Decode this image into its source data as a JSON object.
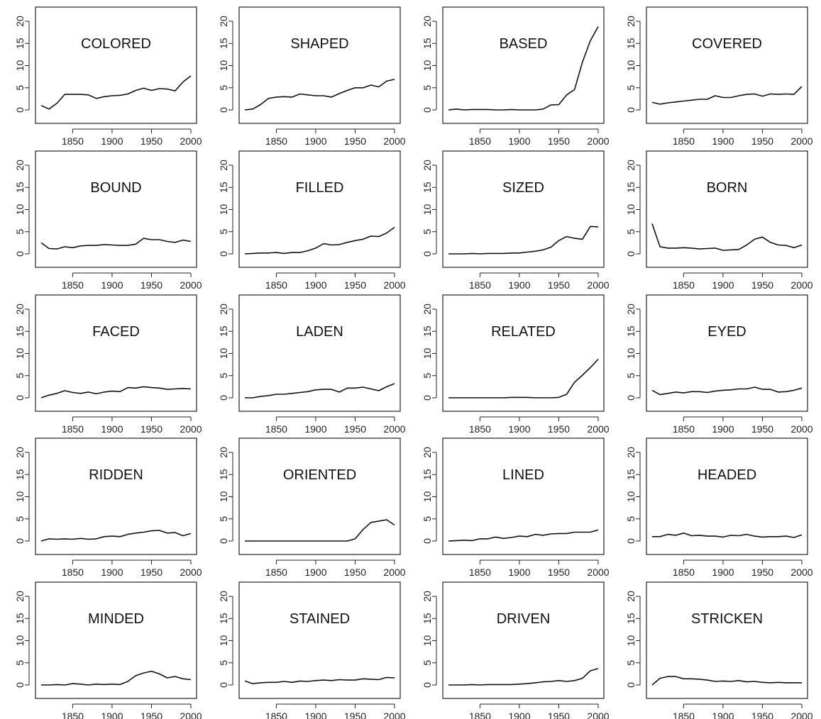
{
  "chart_data": [
    {
      "type": "line",
      "title": "COLORED",
      "xlim": [
        1800,
        2000
      ],
      "ylim": [
        0,
        20
      ],
      "x": [
        1810,
        1820,
        1830,
        1840,
        1850,
        1860,
        1870,
        1880,
        1890,
        1900,
        1910,
        1920,
        1930,
        1940,
        1950,
        1960,
        1970,
        1980,
        1990,
        2000
      ],
      "y": [
        1.0,
        0.2,
        1.5,
        3.5,
        3.5,
        3.5,
        3.4,
        2.6,
        3.0,
        3.2,
        3.3,
        3.6,
        4.4,
        4.9,
        4.4,
        4.8,
        4.7,
        4.3,
        6.3,
        7.7
      ]
    },
    {
      "type": "line",
      "title": "SHAPED",
      "xlim": [
        1800,
        2000
      ],
      "ylim": [
        0,
        20
      ],
      "x": [
        1810,
        1820,
        1830,
        1840,
        1850,
        1860,
        1870,
        1880,
        1890,
        1900,
        1910,
        1920,
        1930,
        1940,
        1950,
        1960,
        1970,
        1980,
        1990,
        2000
      ],
      "y": [
        0.0,
        0.2,
        1.2,
        2.6,
        2.9,
        3.0,
        2.9,
        3.6,
        3.4,
        3.2,
        3.2,
        2.9,
        3.7,
        4.4,
        5.0,
        5.0,
        5.6,
        5.2,
        6.5,
        6.9
      ]
    },
    {
      "type": "line",
      "title": "BASED",
      "xlim": [
        1800,
        2000
      ],
      "ylim": [
        0,
        20
      ],
      "x": [
        1810,
        1820,
        1830,
        1840,
        1850,
        1860,
        1870,
        1880,
        1890,
        1900,
        1910,
        1920,
        1930,
        1940,
        1950,
        1960,
        1970,
        1980,
        1990,
        2000
      ],
      "y": [
        0.0,
        0.2,
        0.0,
        0.1,
        0.1,
        0.1,
        0.0,
        0.0,
        0.1,
        0.0,
        0.0,
        0.0,
        0.2,
        1.1,
        1.2,
        3.4,
        4.6,
        10.8,
        15.6,
        18.8
      ]
    },
    {
      "type": "line",
      "title": "COVERED",
      "xlim": [
        1800,
        2000
      ],
      "ylim": [
        0,
        20
      ],
      "x": [
        1810,
        1820,
        1830,
        1840,
        1850,
        1860,
        1870,
        1880,
        1890,
        1900,
        1910,
        1920,
        1930,
        1940,
        1950,
        1960,
        1970,
        1980,
        1990,
        2000
      ],
      "y": [
        1.7,
        1.3,
        1.6,
        1.8,
        2.0,
        2.2,
        2.4,
        2.4,
        3.2,
        2.8,
        2.8,
        3.2,
        3.5,
        3.6,
        3.1,
        3.6,
        3.5,
        3.6,
        3.5,
        5.3
      ]
    },
    {
      "type": "line",
      "title": "BOUND",
      "xlim": [
        1800,
        2000
      ],
      "ylim": [
        0,
        20
      ],
      "x": [
        1810,
        1820,
        1830,
        1840,
        1850,
        1860,
        1870,
        1880,
        1890,
        1900,
        1910,
        1920,
        1930,
        1940,
        1950,
        1960,
        1970,
        1980,
        1990,
        2000
      ],
      "y": [
        2.5,
        1.2,
        1.1,
        1.6,
        1.4,
        1.8,
        1.9,
        1.9,
        2.1,
        2.0,
        1.9,
        1.9,
        2.2,
        3.5,
        3.2,
        3.2,
        2.8,
        2.6,
        3.1,
        2.8
      ]
    },
    {
      "type": "line",
      "title": "FILLED",
      "xlim": [
        1800,
        2000
      ],
      "ylim": [
        0,
        20
      ],
      "x": [
        1810,
        1820,
        1830,
        1840,
        1850,
        1860,
        1870,
        1880,
        1890,
        1900,
        1910,
        1920,
        1930,
        1940,
        1950,
        1960,
        1970,
        1980,
        1990,
        2000
      ],
      "y": [
        0.0,
        0.1,
        0.2,
        0.2,
        0.3,
        0.1,
        0.3,
        0.3,
        0.7,
        1.3,
        2.3,
        2.0,
        2.1,
        2.6,
        3.0,
        3.3,
        4.0,
        3.9,
        4.7,
        6.0
      ]
    },
    {
      "type": "line",
      "title": "SIZED",
      "xlim": [
        1800,
        2000
      ],
      "ylim": [
        0,
        20
      ],
      "x": [
        1810,
        1820,
        1830,
        1840,
        1850,
        1860,
        1870,
        1880,
        1890,
        1900,
        1910,
        1920,
        1930,
        1940,
        1950,
        1960,
        1970,
        1980,
        1990,
        2000
      ],
      "y": [
        0.0,
        0.0,
        0.0,
        0.1,
        0.0,
        0.1,
        0.1,
        0.1,
        0.2,
        0.2,
        0.4,
        0.6,
        0.9,
        1.5,
        3.0,
        3.9,
        3.5,
        3.3,
        6.2,
        6.1
      ]
    },
    {
      "type": "line",
      "title": "BORN",
      "xlim": [
        1800,
        2000
      ],
      "ylim": [
        0,
        20
      ],
      "x": [
        1810,
        1820,
        1830,
        1840,
        1850,
        1860,
        1870,
        1880,
        1890,
        1900,
        1910,
        1920,
        1930,
        1940,
        1950,
        1960,
        1970,
        1980,
        1990,
        2000
      ],
      "y": [
        6.8,
        1.6,
        1.3,
        1.3,
        1.4,
        1.3,
        1.1,
        1.2,
        1.3,
        0.8,
        0.9,
        1.0,
        2.0,
        3.3,
        3.8,
        2.6,
        2.0,
        1.9,
        1.4,
        2.0
      ]
    },
    {
      "type": "line",
      "title": "FACED",
      "xlim": [
        1800,
        2000
      ],
      "ylim": [
        0,
        20
      ],
      "x": [
        1810,
        1820,
        1830,
        1840,
        1850,
        1860,
        1870,
        1880,
        1890,
        1900,
        1910,
        1920,
        1930,
        1940,
        1950,
        1960,
        1970,
        1980,
        1990,
        2000
      ],
      "y": [
        0.0,
        0.6,
        1.0,
        1.6,
        1.2,
        1.0,
        1.3,
        0.9,
        1.3,
        1.5,
        1.4,
        2.3,
        2.2,
        2.5,
        2.3,
        2.2,
        1.9,
        2.0,
        2.1,
        2.0
      ]
    },
    {
      "type": "line",
      "title": "LADEN",
      "xlim": [
        1800,
        2000
      ],
      "ylim": [
        0,
        20
      ],
      "x": [
        1810,
        1820,
        1830,
        1840,
        1850,
        1860,
        1870,
        1880,
        1890,
        1900,
        1910,
        1920,
        1930,
        1940,
        1950,
        1960,
        1970,
        1980,
        1990,
        2000
      ],
      "y": [
        0.0,
        0.0,
        0.3,
        0.5,
        0.8,
        0.8,
        1.0,
        1.2,
        1.4,
        1.8,
        1.9,
        1.9,
        1.3,
        2.2,
        2.2,
        2.4,
        2.0,
        1.6,
        2.5,
        3.2
      ]
    },
    {
      "type": "line",
      "title": "RELATED",
      "xlim": [
        1800,
        2000
      ],
      "ylim": [
        0,
        20
      ],
      "x": [
        1810,
        1820,
        1830,
        1840,
        1850,
        1860,
        1870,
        1880,
        1890,
        1900,
        1910,
        1920,
        1930,
        1940,
        1950,
        1960,
        1970,
        1980,
        1990,
        2000
      ],
      "y": [
        0.0,
        0.0,
        0.0,
        0.0,
        0.0,
        0.0,
        0.0,
        0.0,
        0.1,
        0.1,
        0.1,
        0.0,
        0.0,
        0.0,
        0.1,
        0.8,
        3.5,
        5.1,
        6.8,
        8.7
      ]
    },
    {
      "type": "line",
      "title": "EYED",
      "xlim": [
        1800,
        2000
      ],
      "ylim": [
        0,
        20
      ],
      "x": [
        1810,
        1820,
        1830,
        1840,
        1850,
        1860,
        1870,
        1880,
        1890,
        1900,
        1910,
        1920,
        1930,
        1940,
        1950,
        1960,
        1970,
        1980,
        1990,
        2000
      ],
      "y": [
        1.7,
        0.7,
        1.0,
        1.3,
        1.1,
        1.4,
        1.4,
        1.2,
        1.5,
        1.7,
        1.8,
        2.0,
        2.0,
        2.4,
        1.9,
        1.9,
        1.3,
        1.4,
        1.7,
        2.2
      ]
    },
    {
      "type": "line",
      "title": "RIDDEN",
      "xlim": [
        1800,
        2000
      ],
      "ylim": [
        0,
        20
      ],
      "x": [
        1810,
        1820,
        1830,
        1840,
        1850,
        1860,
        1870,
        1880,
        1890,
        1900,
        1910,
        1920,
        1930,
        1940,
        1950,
        1960,
        1970,
        1980,
        1990,
        2000
      ],
      "y": [
        0.0,
        0.5,
        0.4,
        0.5,
        0.4,
        0.6,
        0.4,
        0.5,
        1.0,
        1.1,
        1.0,
        1.5,
        1.8,
        2.0,
        2.3,
        2.4,
        1.8,
        1.9,
        1.2,
        1.7
      ]
    },
    {
      "type": "line",
      "title": "ORIENTED",
      "xlim": [
        1800,
        2000
      ],
      "ylim": [
        0,
        20
      ],
      "x": [
        1810,
        1820,
        1830,
        1840,
        1850,
        1860,
        1870,
        1880,
        1890,
        1900,
        1910,
        1920,
        1930,
        1940,
        1950,
        1960,
        1970,
        1980,
        1990,
        2000
      ],
      "y": [
        0.0,
        0.0,
        0.0,
        0.0,
        0.0,
        0.0,
        0.0,
        0.0,
        0.0,
        0.0,
        0.0,
        0.0,
        0.0,
        0.0,
        0.5,
        2.6,
        4.2,
        4.5,
        4.8,
        3.6
      ]
    },
    {
      "type": "line",
      "title": "LINED",
      "xlim": [
        1800,
        2000
      ],
      "ylim": [
        0,
        20
      ],
      "x": [
        1810,
        1820,
        1830,
        1840,
        1850,
        1860,
        1870,
        1880,
        1890,
        1900,
        1910,
        1920,
        1930,
        1940,
        1950,
        1960,
        1970,
        1980,
        1990,
        2000
      ],
      "y": [
        0.0,
        0.1,
        0.2,
        0.1,
        0.5,
        0.5,
        0.9,
        0.6,
        0.8,
        1.1,
        1.0,
        1.5,
        1.3,
        1.6,
        1.7,
        1.7,
        2.0,
        2.0,
        2.0,
        2.5
      ]
    },
    {
      "type": "line",
      "title": "HEADED",
      "xlim": [
        1800,
        2000
      ],
      "ylim": [
        0,
        20
      ],
      "x": [
        1810,
        1820,
        1830,
        1840,
        1850,
        1860,
        1870,
        1880,
        1890,
        1900,
        1910,
        1920,
        1930,
        1940,
        1950,
        1960,
        1970,
        1980,
        1990,
        2000
      ],
      "y": [
        1.0,
        1.0,
        1.5,
        1.3,
        1.8,
        1.2,
        1.3,
        1.1,
        1.1,
        0.9,
        1.3,
        1.2,
        1.5,
        1.1,
        0.9,
        1.0,
        1.0,
        1.1,
        0.8,
        1.4
      ]
    },
    {
      "type": "line",
      "title": "MINDED",
      "xlim": [
        1800,
        2000
      ],
      "ylim": [
        0,
        20
      ],
      "x": [
        1810,
        1820,
        1830,
        1840,
        1850,
        1860,
        1870,
        1880,
        1890,
        1900,
        1910,
        1920,
        1930,
        1940,
        1950,
        1960,
        1970,
        1980,
        1990,
        2000
      ],
      "y": [
        0.0,
        0.0,
        0.1,
        0.0,
        0.3,
        0.2,
        0.0,
        0.2,
        0.1,
        0.2,
        0.1,
        0.8,
        2.1,
        2.7,
        3.1,
        2.5,
        1.6,
        1.9,
        1.4,
        1.2
      ]
    },
    {
      "type": "line",
      "title": "STAINED",
      "xlim": [
        1800,
        2000
      ],
      "ylim": [
        0,
        20
      ],
      "x": [
        1810,
        1820,
        1830,
        1840,
        1850,
        1860,
        1870,
        1880,
        1890,
        1900,
        1910,
        1920,
        1930,
        1940,
        1950,
        1960,
        1970,
        1980,
        1990,
        2000
      ],
      "y": [
        0.9,
        0.3,
        0.5,
        0.6,
        0.6,
        0.8,
        0.6,
        0.9,
        0.8,
        1.0,
        1.1,
        1.0,
        1.2,
        1.1,
        1.1,
        1.4,
        1.3,
        1.2,
        1.7,
        1.6
      ]
    },
    {
      "type": "line",
      "title": "DRIVEN",
      "xlim": [
        1800,
        2000
      ],
      "ylim": [
        0,
        20
      ],
      "x": [
        1810,
        1820,
        1830,
        1840,
        1850,
        1860,
        1870,
        1880,
        1890,
        1900,
        1910,
        1920,
        1930,
        1940,
        1950,
        1960,
        1970,
        1980,
        1990,
        2000
      ],
      "y": [
        0.0,
        0.0,
        0.0,
        0.1,
        0.0,
        0.1,
        0.1,
        0.1,
        0.1,
        0.2,
        0.3,
        0.5,
        0.7,
        0.8,
        1.0,
        0.8,
        1.0,
        1.5,
        3.2,
        3.7
      ]
    },
    {
      "type": "line",
      "title": "STRICKEN",
      "xlim": [
        1800,
        2000
      ],
      "ylim": [
        0,
        20
      ],
      "x": [
        1810,
        1820,
        1830,
        1840,
        1850,
        1860,
        1870,
        1880,
        1890,
        1900,
        1910,
        1920,
        1930,
        1940,
        1950,
        1960,
        1970,
        1980,
        1990,
        2000
      ],
      "y": [
        0.0,
        1.5,
        1.9,
        1.9,
        1.4,
        1.4,
        1.3,
        1.1,
        0.8,
        0.9,
        0.8,
        1.0,
        0.7,
        0.8,
        0.6,
        0.5,
        0.6,
        0.5,
        0.5,
        0.5
      ]
    }
  ],
  "axes": {
    "x_ticks": [
      1850,
      1900,
      1950,
      2000
    ],
    "y_ticks": [
      0,
      5,
      10,
      15,
      20
    ],
    "x_tick_labels": [
      "1850",
      "1900",
      "1950",
      "2000"
    ],
    "y_tick_labels": [
      "0",
      "5",
      "10",
      "15",
      "20"
    ],
    "grid": false,
    "legend": "none"
  },
  "colors": {
    "line": "#111111",
    "frame": "#222222",
    "background": "#ffffff"
  }
}
